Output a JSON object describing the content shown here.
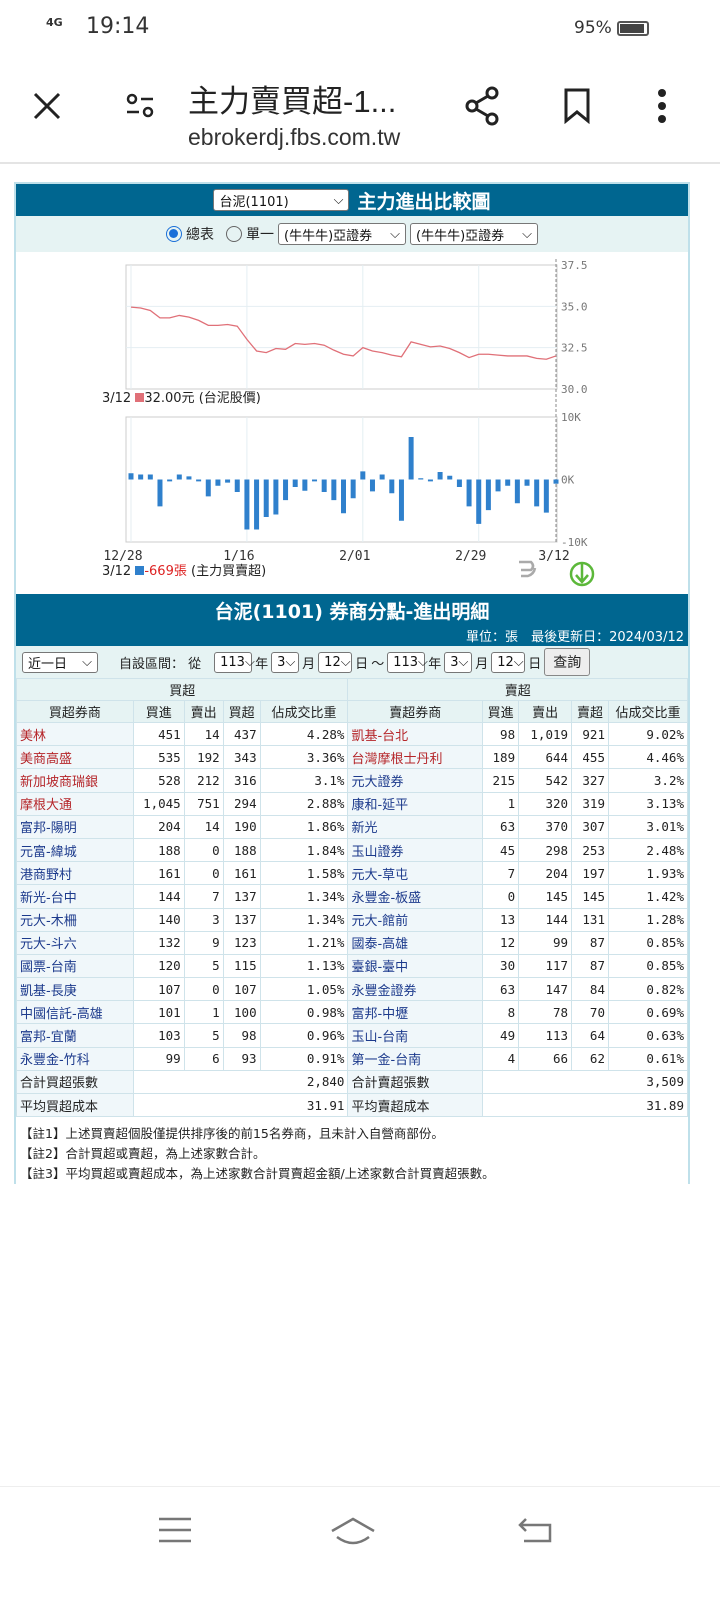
{
  "status": {
    "network": "4G",
    "time": "19:14",
    "battery": "95%"
  },
  "browser": {
    "title": "主力賣買超-1...",
    "url": "ebrokerdj.fbs.com.tw"
  },
  "chart_section": {
    "stock_select": "台泥(1101)",
    "title": "主力進出比較圖",
    "radio_total": "總表",
    "radio_single": "單一",
    "broker_select_1": "(牛牛牛)亞證券",
    "broker_select_2": "(牛牛牛)亞證券",
    "price_legend_date": "3/12",
    "price_legend_value": "32.00元",
    "price_legend_name": "(台泥股價)",
    "vol_legend_date": "3/12",
    "vol_legend_value": "-669張",
    "vol_legend_name": "(主力買賣超)",
    "colors": {
      "price": "#e07078",
      "bars": "#2f80cc",
      "header": "#006690"
    }
  },
  "chart_data": [
    {
      "type": "line",
      "y_ticks": [
        "37.5",
        "35.0",
        "32.5",
        "30.0"
      ],
      "ylim": [
        30,
        37.5
      ],
      "x_ticks": [
        "12/28",
        "1/16",
        "2/01",
        "2/29",
        "3/12"
      ],
      "x_tick_index": [
        0,
        12,
        24,
        36,
        44
      ],
      "values": [
        34.95,
        34.9,
        34.75,
        34.3,
        34.3,
        34.45,
        34.35,
        34.15,
        33.85,
        33.85,
        33.9,
        33.8,
        33.0,
        32.3,
        32.2,
        32.45,
        32.4,
        32.75,
        32.7,
        32.75,
        32.65,
        32.35,
        32.1,
        32.0,
        32.5,
        32.3,
        32.2,
        32.05,
        31.95,
        32.85,
        32.7,
        32.55,
        32.6,
        32.45,
        32.2,
        31.9,
        32.1,
        32.1,
        32.05,
        32.0,
        32.0,
        32.0,
        31.85,
        31.8,
        32.0
      ]
    },
    {
      "type": "bar",
      "y_ticks": [
        "10K",
        "0K",
        "-10K"
      ],
      "ylim": [
        -10000,
        10000
      ],
      "x_ticks": [
        "12/28",
        "1/16",
        "2/01",
        "2/29",
        "3/12"
      ],
      "values": [
        1000,
        800,
        800,
        -4300,
        -300,
        800,
        500,
        -300,
        -2700,
        -1000,
        -500,
        -2000,
        -8000,
        -8000,
        -6000,
        -5600,
        -3300,
        -1200,
        -1800,
        -300,
        -2000,
        -3300,
        -5400,
        -3000,
        1300,
        -1900,
        800,
        -2200,
        -6600,
        6800,
        200,
        -300,
        1200,
        600,
        -1200,
        -4300,
        -7100,
        -4900,
        -1900,
        -1000,
        -3800,
        -1000,
        -4300,
        -5300,
        -669
      ]
    }
  ],
  "detail": {
    "title": "台泥(1101) 券商分點-進出明細",
    "unit": "單位：張",
    "updated": "最後更新日：2024/03/12",
    "period_select": "近一日",
    "custom_label": "自設區間： 從",
    "from": {
      "year": "113",
      "month": "3",
      "day": "12"
    },
    "to": {
      "year": "113",
      "month": "3",
      "day": "12"
    },
    "year_unit": "年",
    "month_unit": "月",
    "day_unit": "日",
    "tilde": "～",
    "query_button": "查詢",
    "buy_group": "買超",
    "sell_group": "賣超",
    "buy_headers": [
      "買超券商",
      "買進",
      "賣出",
      "買超",
      "佔成交比重"
    ],
    "sell_headers": [
      "賣超券商",
      "買進",
      "賣出",
      "賣超",
      "佔成交比重"
    ],
    "rows": [
      {
        "b": [
          "美林",
          "451",
          "14",
          "437",
          "4.28%"
        ],
        "s": [
          "凱基-台北",
          "98",
          "1,019",
          "921",
          "9.02%"
        ],
        "br": true,
        "sr": true
      },
      {
        "b": [
          "美商高盛",
          "535",
          "192",
          "343",
          "3.36%"
        ],
        "s": [
          "台灣摩根士丹利",
          "189",
          "644",
          "455",
          "4.46%"
        ],
        "br": true,
        "sr": true
      },
      {
        "b": [
          "新加坡商瑞銀",
          "528",
          "212",
          "316",
          "3.1%"
        ],
        "s": [
          "元大證券",
          "215",
          "542",
          "327",
          "3.2%"
        ],
        "br": true,
        "sr": false
      },
      {
        "b": [
          "摩根大通",
          "1,045",
          "751",
          "294",
          "2.88%"
        ],
        "s": [
          "康和-延平",
          "1",
          "320",
          "319",
          "3.13%"
        ],
        "br": true,
        "sr": false
      },
      {
        "b": [
          "富邦-陽明",
          "204",
          "14",
          "190",
          "1.86%"
        ],
        "s": [
          "新光",
          "63",
          "370",
          "307",
          "3.01%"
        ]
      },
      {
        "b": [
          "元富-緯城",
          "188",
          "0",
          "188",
          "1.84%"
        ],
        "s": [
          "玉山證券",
          "45",
          "298",
          "253",
          "2.48%"
        ]
      },
      {
        "b": [
          "港商野村",
          "161",
          "0",
          "161",
          "1.58%"
        ],
        "s": [
          "元大-草屯",
          "7",
          "204",
          "197",
          "1.93%"
        ]
      },
      {
        "b": [
          "新光-台中",
          "144",
          "7",
          "137",
          "1.34%"
        ],
        "s": [
          "永豐金-板盛",
          "0",
          "145",
          "145",
          "1.42%"
        ]
      },
      {
        "b": [
          "元大-木柵",
          "140",
          "3",
          "137",
          "1.34%"
        ],
        "s": [
          "元大-館前",
          "13",
          "144",
          "131",
          "1.28%"
        ]
      },
      {
        "b": [
          "元大-斗六",
          "132",
          "9",
          "123",
          "1.21%"
        ],
        "s": [
          "國泰-高雄",
          "12",
          "99",
          "87",
          "0.85%"
        ]
      },
      {
        "b": [
          "國票-台南",
          "120",
          "5",
          "115",
          "1.13%"
        ],
        "s": [
          "臺銀-臺中",
          "30",
          "117",
          "87",
          "0.85%"
        ]
      },
      {
        "b": [
          "凱基-長庚",
          "107",
          "0",
          "107",
          "1.05%"
        ],
        "s": [
          "永豐金證券",
          "63",
          "147",
          "84",
          "0.82%"
        ]
      },
      {
        "b": [
          "中國信託-高雄",
          "101",
          "1",
          "100",
          "0.98%"
        ],
        "s": [
          "富邦-中壢",
          "8",
          "78",
          "70",
          "0.69%"
        ]
      },
      {
        "b": [
          "富邦-宜蘭",
          "103",
          "5",
          "98",
          "0.96%"
        ],
        "s": [
          "玉山-台南",
          "49",
          "113",
          "64",
          "0.63%"
        ]
      },
      {
        "b": [
          "永豐金-竹科",
          "99",
          "6",
          "93",
          "0.91%"
        ],
        "s": [
          "第一金-台南",
          "4",
          "66",
          "62",
          "0.61%"
        ]
      }
    ],
    "totals": {
      "buy_label": "合計買超張數",
      "buy_value": "2,840",
      "sell_label": "合計賣超張數",
      "sell_value": "3,509"
    },
    "avg": {
      "buy_label": "平均買超成本",
      "buy_value": "31.91",
      "sell_label": "平均賣超成本",
      "sell_value": "31.89"
    },
    "notes": [
      "【註1】上述買賣超個股僅提供排序後的前15名券商，且未計入自營商部份。",
      "【註2】合計買超或賣超，為上述家數合計。",
      "【註3】平均買超或賣超成本，為上述家數合計買賣超金額/上述家數合計買賣超張數。"
    ]
  }
}
